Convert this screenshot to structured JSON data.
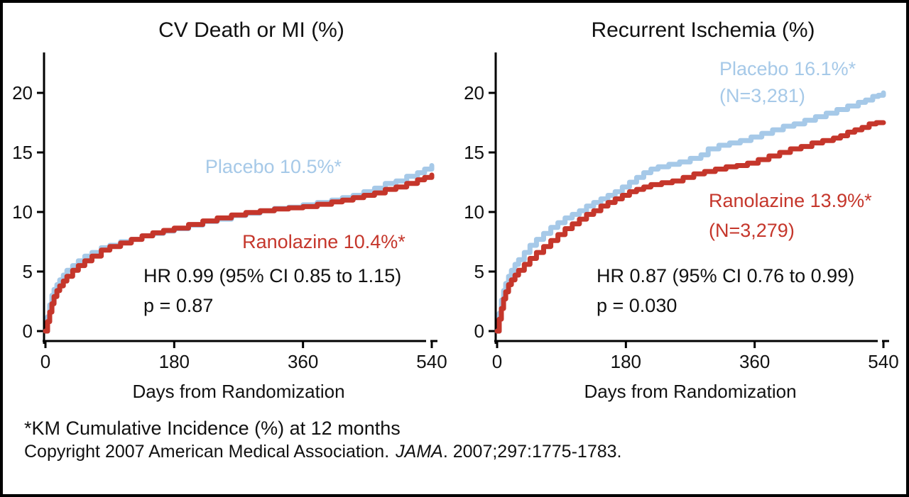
{
  "figure": {
    "background": "#ffffff",
    "border_color": "#000000",
    "footnote": "*KM Cumulative Incidence (%) at 12 months",
    "copyright_prefix": "Copyright 2007 American Medical Association.",
    "copyright_journal": "JAMA",
    "copyright_suffix": ". 2007;297:1775-1783."
  },
  "colors": {
    "placebo": "#A6C9E8",
    "ranolazine": "#C5362B",
    "axis": "#000000",
    "text": "#111111"
  },
  "chart_data": [
    {
      "type": "line",
      "subtype": "kaplan-meier-cumulative-incidence",
      "title": "CV Death or MI (%)",
      "xlabel": "Days from Randomization",
      "ylabel": "",
      "xlim": [
        0,
        540
      ],
      "ylim": [
        0,
        22.5
      ],
      "x_ticks": [
        0,
        180,
        360,
        540
      ],
      "y_ticks": [
        0,
        5,
        10,
        15,
        20
      ],
      "grid": false,
      "legend_position": "inline-labels",
      "annotations": {
        "hr_text": "HR 0.99 (95% CI 0.85 to 1.15)",
        "p_text": "p = 0.87"
      },
      "series": [
        {
          "name": "Placebo",
          "label": "Placebo 10.5%*",
          "km_incidence_12mo_pct": 10.5,
          "color_key": "placebo",
          "points": [
            [
              0,
              0
            ],
            [
              3,
              1.2
            ],
            [
              6,
              2.2
            ],
            [
              9,
              3.0
            ],
            [
              12,
              3.5
            ],
            [
              16,
              3.9
            ],
            [
              20,
              4.3
            ],
            [
              25,
              4.7
            ],
            [
              30,
              5.1
            ],
            [
              38,
              5.5
            ],
            [
              46,
              5.9
            ],
            [
              55,
              6.3
            ],
            [
              65,
              6.6
            ],
            [
              78,
              7.0
            ],
            [
              90,
              7.2
            ],
            [
              105,
              7.5
            ],
            [
              120,
              7.7
            ],
            [
              135,
              8.0
            ],
            [
              150,
              8.2
            ],
            [
              165,
              8.4
            ],
            [
              180,
              8.6
            ],
            [
              200,
              8.9
            ],
            [
              220,
              9.2
            ],
            [
              240,
              9.4
            ],
            [
              260,
              9.7
            ],
            [
              280,
              9.9
            ],
            [
              300,
              10.1
            ],
            [
              320,
              10.3
            ],
            [
              340,
              10.4
            ],
            [
              360,
              10.6
            ],
            [
              380,
              10.8
            ],
            [
              400,
              11.0
            ],
            [
              415,
              11.2
            ],
            [
              430,
              11.4
            ],
            [
              445,
              11.7
            ],
            [
              460,
              12.0
            ],
            [
              475,
              12.4
            ],
            [
              490,
              12.6
            ],
            [
              505,
              13.0
            ],
            [
              520,
              13.3
            ],
            [
              530,
              13.6
            ],
            [
              540,
              13.9
            ]
          ]
        },
        {
          "name": "Ranolazine",
          "label": "Ranolazine 10.4%*",
          "km_incidence_12mo_pct": 10.4,
          "color_key": "ranolazine",
          "points": [
            [
              0,
              0
            ],
            [
              3,
              0.8
            ],
            [
              6,
              1.6
            ],
            [
              9,
              2.3
            ],
            [
              12,
              2.9
            ],
            [
              16,
              3.4
            ],
            [
              20,
              3.8
            ],
            [
              25,
              4.2
            ],
            [
              30,
              4.6
            ],
            [
              38,
              5.1
            ],
            [
              46,
              5.5
            ],
            [
              55,
              5.9
            ],
            [
              65,
              6.3
            ],
            [
              78,
              6.8
            ],
            [
              90,
              7.1
            ],
            [
              105,
              7.4
            ],
            [
              120,
              7.7
            ],
            [
              135,
              8.0
            ],
            [
              150,
              8.25
            ],
            [
              165,
              8.45
            ],
            [
              180,
              8.65
            ],
            [
              200,
              8.95
            ],
            [
              220,
              9.25
            ],
            [
              240,
              9.5
            ],
            [
              260,
              9.75
            ],
            [
              280,
              9.95
            ],
            [
              300,
              10.1
            ],
            [
              320,
              10.25
            ],
            [
              340,
              10.35
            ],
            [
              360,
              10.45
            ],
            [
              380,
              10.65
            ],
            [
              400,
              10.85
            ],
            [
              415,
              11.0
            ],
            [
              430,
              11.2
            ],
            [
              445,
              11.4
            ],
            [
              460,
              11.6
            ],
            [
              475,
              11.9
            ],
            [
              490,
              12.1
            ],
            [
              505,
              12.4
            ],
            [
              520,
              12.7
            ],
            [
              530,
              12.9
            ],
            [
              540,
              13.1
            ]
          ]
        }
      ]
    },
    {
      "type": "line",
      "subtype": "kaplan-meier-cumulative-incidence",
      "title": "Recurrent Ischemia (%)",
      "xlabel": "Days from Randomization",
      "ylabel": "",
      "xlim": [
        0,
        540
      ],
      "ylim": [
        0,
        22.5
      ],
      "x_ticks": [
        0,
        180,
        360,
        540
      ],
      "y_ticks": [
        0,
        5,
        10,
        15,
        20
      ],
      "grid": false,
      "legend_position": "inline-labels",
      "annotations": {
        "hr_text": "HR 0.87 (95% CI 0.76 to 0.99)",
        "p_text": "p = 0.030"
      },
      "series": [
        {
          "name": "Placebo",
          "label": "Placebo 16.1%*",
          "n_label": "(N=3,281)",
          "n": 3281,
          "km_incidence_12mo_pct": 16.1,
          "color_key": "placebo",
          "points": [
            [
              0,
              0
            ],
            [
              3,
              1.5
            ],
            [
              6,
              2.6
            ],
            [
              9,
              3.4
            ],
            [
              12,
              4.0
            ],
            [
              16,
              4.6
            ],
            [
              20,
              5.1
            ],
            [
              25,
              5.6
            ],
            [
              30,
              6.0
            ],
            [
              38,
              6.6
            ],
            [
              46,
              7.2
            ],
            [
              55,
              7.7
            ],
            [
              65,
              8.2
            ],
            [
              75,
              8.7
            ],
            [
              85,
              9.1
            ],
            [
              95,
              9.5
            ],
            [
              105,
              9.8
            ],
            [
              115,
              10.1
            ],
            [
              125,
              10.5
            ],
            [
              135,
              10.8
            ],
            [
              145,
              11.1
            ],
            [
              155,
              11.4
            ],
            [
              165,
              11.7
            ],
            [
              175,
              12.1
            ],
            [
              185,
              12.5
            ],
            [
              195,
              12.9
            ],
            [
              205,
              13.3
            ],
            [
              215,
              13.6
            ],
            [
              225,
              13.8
            ],
            [
              240,
              14.0
            ],
            [
              255,
              14.2
            ],
            [
              270,
              14.5
            ],
            [
              285,
              14.8
            ],
            [
              295,
              15.3
            ],
            [
              310,
              15.6
            ],
            [
              325,
              15.8
            ],
            [
              340,
              16.0
            ],
            [
              355,
              16.3
            ],
            [
              370,
              16.6
            ],
            [
              385,
              16.9
            ],
            [
              400,
              17.2
            ],
            [
              415,
              17.4
            ],
            [
              430,
              17.7
            ],
            [
              445,
              18.0
            ],
            [
              460,
              18.3
            ],
            [
              475,
              18.6
            ],
            [
              490,
              18.9
            ],
            [
              505,
              19.2
            ],
            [
              515,
              19.4
            ],
            [
              525,
              19.7
            ],
            [
              533,
              19.8
            ],
            [
              540,
              20.0
            ]
          ]
        },
        {
          "name": "Ranolazine",
          "label": "Ranolazine 13.9%*",
          "n_label": "(N=3,279)",
          "n": 3279,
          "km_incidence_12mo_pct": 13.9,
          "color_key": "ranolazine",
          "points": [
            [
              0,
              0
            ],
            [
              3,
              1.0
            ],
            [
              6,
              1.9
            ],
            [
              9,
              2.7
            ],
            [
              12,
              3.3
            ],
            [
              16,
              3.9
            ],
            [
              20,
              4.3
            ],
            [
              25,
              4.7
            ],
            [
              30,
              5.1
            ],
            [
              38,
              5.6
            ],
            [
              46,
              6.1
            ],
            [
              55,
              6.6
            ],
            [
              65,
              7.1
            ],
            [
              75,
              7.6
            ],
            [
              85,
              8.1
            ],
            [
              95,
              8.6
            ],
            [
              105,
              9.0
            ],
            [
              115,
              9.4
            ],
            [
              125,
              9.8
            ],
            [
              135,
              10.1
            ],
            [
              145,
              10.5
            ],
            [
              155,
              10.8
            ],
            [
              165,
              11.1
            ],
            [
              175,
              11.4
            ],
            [
              185,
              11.7
            ],
            [
              195,
              11.9
            ],
            [
              205,
              12.1
            ],
            [
              215,
              12.3
            ],
            [
              230,
              12.45
            ],
            [
              245,
              12.6
            ],
            [
              260,
              12.9
            ],
            [
              275,
              13.2
            ],
            [
              290,
              13.4
            ],
            [
              305,
              13.6
            ],
            [
              320,
              13.8
            ],
            [
              335,
              13.9
            ],
            [
              350,
              14.1
            ],
            [
              365,
              14.4
            ],
            [
              380,
              14.7
            ],
            [
              395,
              15.0
            ],
            [
              410,
              15.3
            ],
            [
              425,
              15.5
            ],
            [
              440,
              15.8
            ],
            [
              455,
              16.0
            ],
            [
              470,
              16.2
            ],
            [
              480,
              16.4
            ],
            [
              490,
              16.7
            ],
            [
              500,
              16.9
            ],
            [
              510,
              17.1
            ],
            [
              520,
              17.4
            ],
            [
              530,
              17.5
            ],
            [
              540,
              17.5
            ]
          ]
        }
      ]
    }
  ]
}
